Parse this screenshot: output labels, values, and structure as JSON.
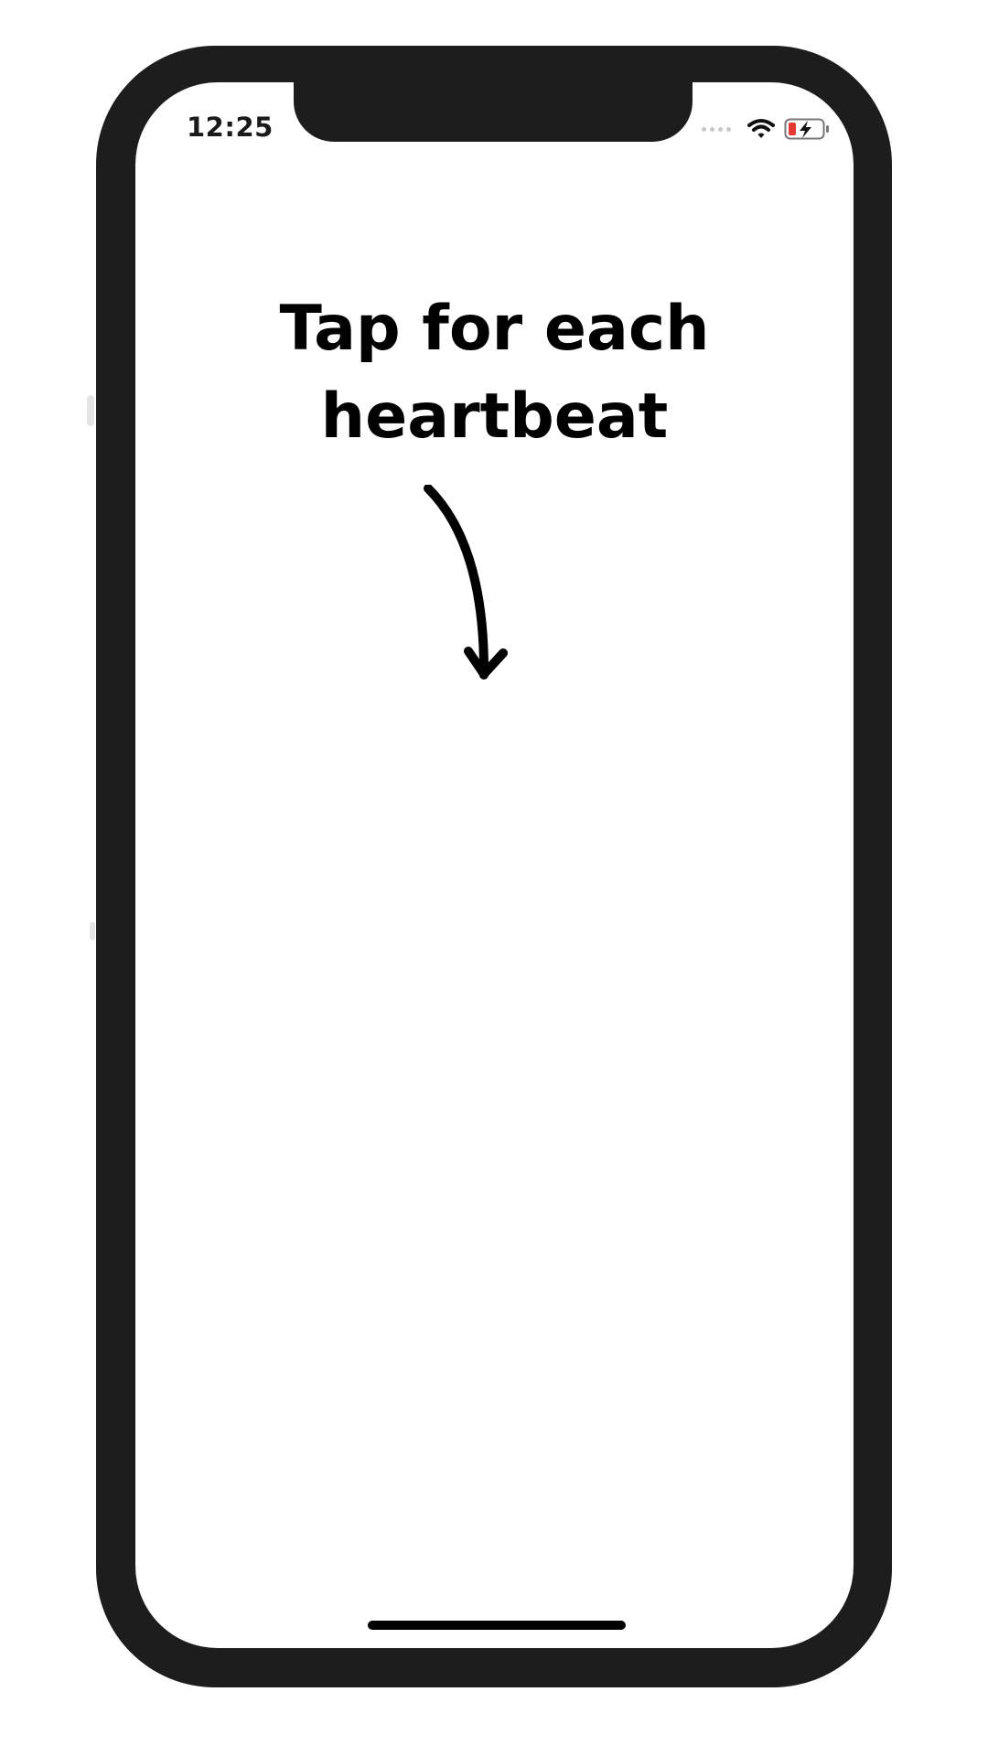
{
  "status_bar": {
    "time": "12:25",
    "icons": [
      "signal-dots-icon",
      "wifi-icon",
      "battery-charging-icon"
    ],
    "battery_color": "#e53935"
  },
  "main": {
    "title_line_1": "Tap for each",
    "title_line_2": "heartbeat",
    "arrow_icon": "curved-arrow-down-icon"
  },
  "colors": {
    "frame": "#1d1d1d",
    "screen": "#ffffff",
    "text": "#000000"
  }
}
